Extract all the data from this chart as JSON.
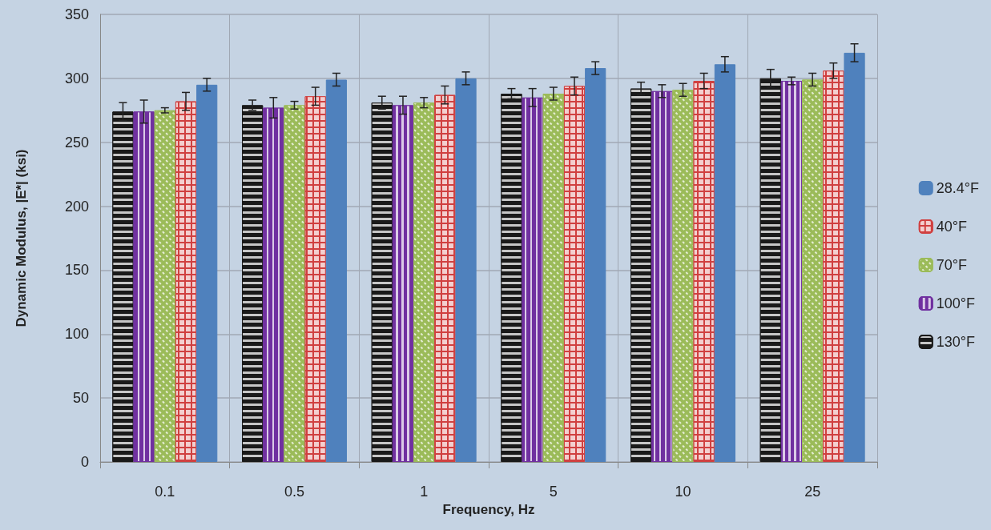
{
  "chart_data": {
    "type": "bar",
    "xlabel": "Frequency, Hz",
    "ylabel": "Dynamic Modulus, |E*| (ksi)",
    "categories": [
      "0.1",
      "0.5",
      "1",
      "5",
      "10",
      "25"
    ],
    "series": [
      {
        "name": "130°F",
        "color": "#1a1a1a",
        "values": [
          274,
          279,
          281,
          288,
          292,
          300
        ],
        "errors": [
          7,
          4,
          5,
          4,
          5,
          7
        ]
      },
      {
        "name": "100°F",
        "color": "#7030a0",
        "values": [
          274,
          277,
          279,
          285,
          290,
          298
        ],
        "errors": [
          9,
          8,
          7,
          7,
          5,
          3
        ]
      },
      {
        "name": "70°F",
        "color": "#9bbb59",
        "values": [
          275,
          279,
          281,
          288,
          291,
          299
        ],
        "errors": [
          2,
          3,
          4,
          5,
          5,
          5
        ]
      },
      {
        "name": "40°F",
        "color": "#d04040",
        "values": [
          282,
          286,
          287,
          294,
          298,
          306
        ],
        "errors": [
          7,
          7,
          7,
          7,
          6,
          6
        ]
      },
      {
        "name": "28.4°F",
        "color": "#4f81bd",
        "values": [
          295,
          299,
          300,
          308,
          311,
          320
        ],
        "errors": [
          5,
          5,
          5,
          5,
          6,
          7
        ]
      }
    ],
    "ylim": [
      0,
      350
    ],
    "yticks": [
      0,
      50,
      100,
      150,
      200,
      250,
      300,
      350
    ],
    "grid": true,
    "legend": "right"
  }
}
